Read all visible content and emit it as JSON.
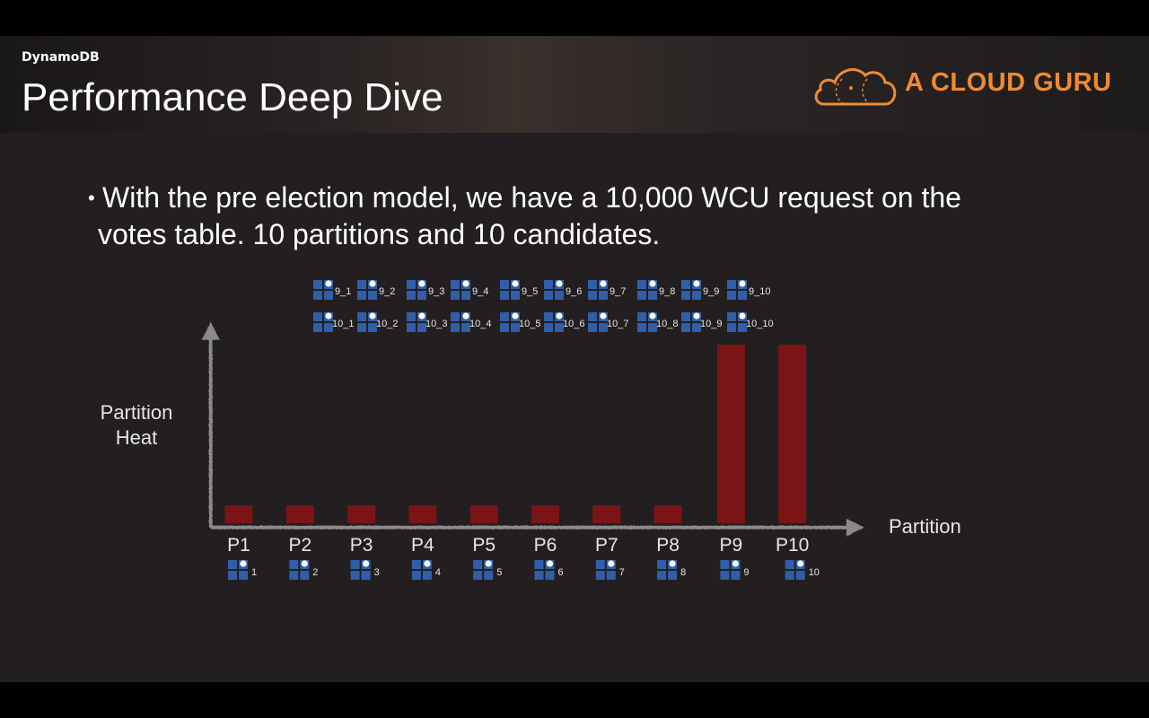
{
  "header": {
    "section": "DynamoDB",
    "title": "Performance Deep Dive",
    "logo_text": "A CLOUD GURU"
  },
  "bullet": {
    "line1": "With the pre election model, we have a 10,000 WCU request on the",
    "line2": "votes table. 10 partitions and 10 candidates."
  },
  "colors": {
    "bar": "#7a1416",
    "axis": "#8a8a8a",
    "item": "#2f5fa8",
    "accent": "#f08a32"
  },
  "chart_data": {
    "type": "bar",
    "categories": [
      "P1",
      "P2",
      "P3",
      "P4",
      "P5",
      "P6",
      "P7",
      "P8",
      "P9",
      "P10"
    ],
    "values": [
      1,
      1,
      1,
      1,
      1,
      1,
      1,
      1,
      10,
      10
    ],
    "title": "",
    "xlabel": "Partition",
    "ylabel": "Partition Heat",
    "ylim": [
      0,
      10
    ],
    "partition_items": [
      "1",
      "2",
      "3",
      "4",
      "5",
      "6",
      "7",
      "8",
      "9",
      "10"
    ],
    "hot_items_row1": [
      "9_1",
      "9_2",
      "9_3",
      "9_4",
      "9_5",
      "9_6",
      "9_7",
      "9_8",
      "9_9",
      "9_10"
    ],
    "hot_items_row2": [
      "10_1",
      "10_2",
      "10_3",
      "10_4",
      "10_5",
      "10_6",
      "10_7",
      "10_8",
      "10_9",
      "10_10"
    ]
  }
}
